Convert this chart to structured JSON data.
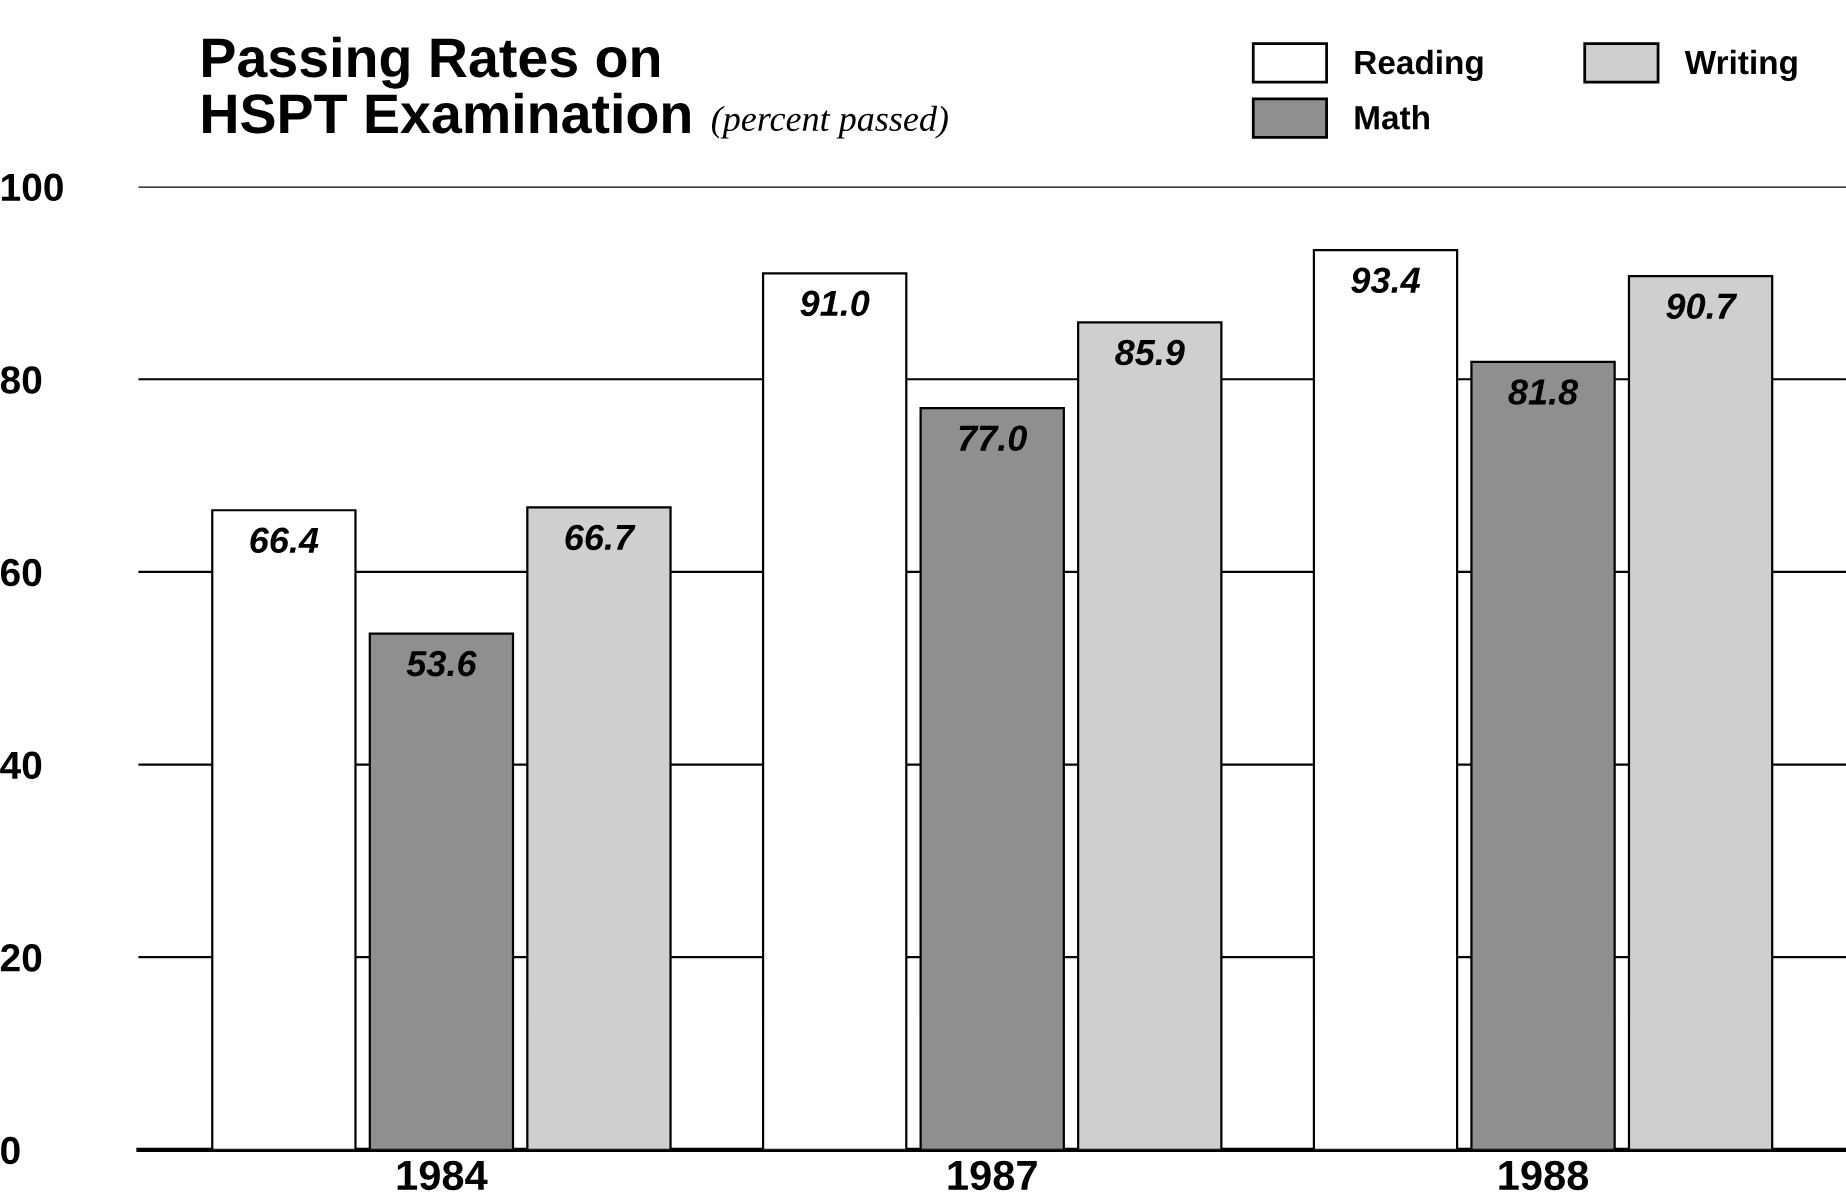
{
  "chart_data": {
    "type": "bar",
    "title": "Passing Rates on\nHSPT Examination",
    "subtitle": "(percent passed)",
    "categories": [
      "1984",
      "1987",
      "1988"
    ],
    "series": [
      {
        "name": "Reading",
        "color": "#ffffff",
        "values": [
          66.4,
          91.0,
          93.4
        ]
      },
      {
        "name": "Math",
        "color": "#8f8f8f",
        "values": [
          53.6,
          77.0,
          81.8
        ]
      },
      {
        "name": "Writing",
        "color": "#cfcfcf",
        "values": [
          66.7,
          85.9,
          90.7
        ]
      }
    ],
    "value_labels": [
      [
        "66.4",
        "91.0",
        "93.4"
      ],
      [
        "53.6",
        "77.0",
        "81.8"
      ],
      [
        "66.7",
        "85.9",
        "90.7"
      ]
    ],
    "ylim": [
      0,
      100
    ],
    "yticks": [
      0,
      20,
      40,
      60,
      80,
      100
    ],
    "grid": "y",
    "legend": "top right"
  }
}
